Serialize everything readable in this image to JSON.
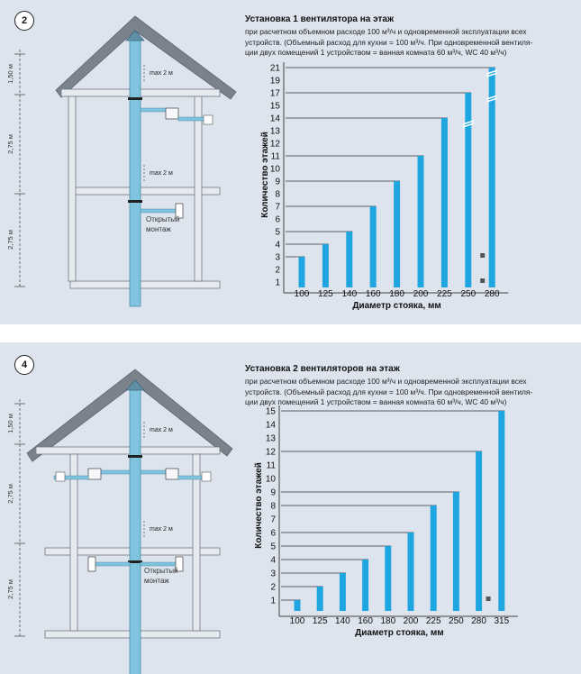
{
  "sections": [
    {
      "number": "2",
      "title": "Установка 1 вентилятора на этаж",
      "description": [
        "при расчетном объемном расходе 100 м³/ч и одновременной эксплуатации всех",
        "устройств. (Объемный расход для кухни = 100 м³/ч. При одновременной вентиля-",
        "ции двух помещений 1 устройством = ванная комната 60 м³/ч, WC 40 м³/ч)"
      ],
      "diagram": {
        "height_labels": [
          "1,50 м",
          "2,75 м",
          "2,75 м"
        ],
        "spacing_labels": [
          "max 2 м",
          "max 2 м"
        ],
        "mount_label": [
          "Открытый",
          "монтаж"
        ]
      },
      "chart_data": {
        "type": "bar",
        "categories": [
          "100",
          "125",
          "140",
          "160",
          "180",
          "200",
          "225",
          "250",
          "280"
        ],
        "values": [
          3,
          4,
          5,
          7,
          9,
          11,
          14,
          17,
          21
        ],
        "y_ticks": [
          "1",
          "2",
          "3",
          "4",
          "5",
          "6",
          "7",
          "8",
          "9",
          "10",
          "11",
          "12",
          "13",
          "14",
          "15",
          "17",
          "19",
          "21"
        ],
        "xlabel": "Диаметр стояка, мм",
        "ylabel": "Количество этажей",
        "color": "#1fa6e0"
      }
    },
    {
      "number": "4",
      "title": "Установка 2 вентиляторов на этаж",
      "description": [
        "при расчетном объемном расходе 100 м³/ч и одновременной эксплуатации всех",
        "устройств. (Объемный расход для кухни = 100 м³/ч. При одновременной вентиля-",
        "ции двух помещений 1 устройством = ванная комната 60 м³/ч, WC 40 м³/ч)"
      ],
      "diagram": {
        "height_labels": [
          "1,50 м",
          "2,75 м",
          "2,75 м"
        ],
        "spacing_labels": [
          "max 2 м",
          "max 2 м"
        ],
        "mount_label": [
          "Открытый",
          "монтаж"
        ]
      },
      "chart_data": {
        "type": "bar",
        "categories": [
          "100",
          "125",
          "140",
          "160",
          "180",
          "200",
          "225",
          "250",
          "280",
          "315"
        ],
        "values": [
          1,
          2,
          3,
          4,
          5,
          6,
          8,
          9,
          12,
          15
        ],
        "y_ticks": [
          "1",
          "2",
          "3",
          "4",
          "5",
          "6",
          "7",
          "8",
          "9",
          "10",
          "11",
          "12",
          "13",
          "14",
          "15"
        ],
        "xlabel": "Диаметр стояка, мм",
        "ylabel": "Количество этажей",
        "color": "#1fa6e0"
      }
    }
  ]
}
